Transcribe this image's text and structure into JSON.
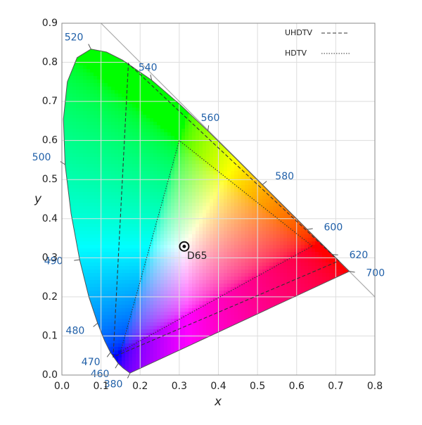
{
  "chart_data": {
    "type": "chromaticity",
    "x_label": "x",
    "y_label": "y",
    "xlim": [
      0,
      0.8
    ],
    "ylim": [
      0,
      0.9
    ],
    "xticks": [
      {
        "value": 0,
        "label": "0.0"
      },
      0.1,
      0.2,
      0.3,
      0.4,
      0.5,
      0.6,
      0.7,
      0.8
    ],
    "yticks": [
      {
        "value": 0,
        "label": "0.0"
      },
      0.1,
      0.2,
      0.3,
      0.4,
      0.5,
      0.6,
      0.7,
      0.8,
      0.9
    ],
    "grid": true,
    "locus": {
      "wavelengths": [
        380,
        null,
        460,
        470,
        null,
        480,
        null,
        490,
        null,
        500,
        null,
        null,
        null,
        520,
        null,
        null,
        540,
        null,
        560,
        null,
        580,
        null,
        600,
        null,
        620,
        700
      ],
      "x": [
        0.1741,
        0.1566,
        0.144,
        0.1241,
        0.1096,
        0.0913,
        0.0687,
        0.0454,
        0.0235,
        0.0082,
        0.0039,
        0.0139,
        0.0389,
        0.0743,
        0.1142,
        0.1547,
        0.2296,
        0.3016,
        0.3731,
        0.4441,
        0.5125,
        0.5752,
        0.627,
        0.6658,
        0.6915,
        0.7347
      ],
      "y": [
        0.005,
        0.0177,
        0.0297,
        0.0578,
        0.0868,
        0.1327,
        0.2007,
        0.295,
        0.4127,
        0.5384,
        0.6548,
        0.7502,
        0.812,
        0.8338,
        0.8262,
        0.8059,
        0.7543,
        0.6923,
        0.6245,
        0.5547,
        0.4866,
        0.4242,
        0.3725,
        0.334,
        0.3083,
        0.2653
      ]
    },
    "series": [
      {
        "name": "UHDTV",
        "dash": "dashed",
        "x": [
          0.708,
          0.17,
          0.131
        ],
        "y": [
          0.292,
          0.797,
          0.046
        ]
      },
      {
        "name": "HDTV",
        "dash": "dotted",
        "x": [
          0.64,
          0.3,
          0.15
        ],
        "y": [
          0.33,
          0.6,
          0.06
        ]
      }
    ],
    "white_point": {
      "name": "D65",
      "x": 0.3127,
      "y": 0.329
    },
    "legend": "upper right"
  }
}
